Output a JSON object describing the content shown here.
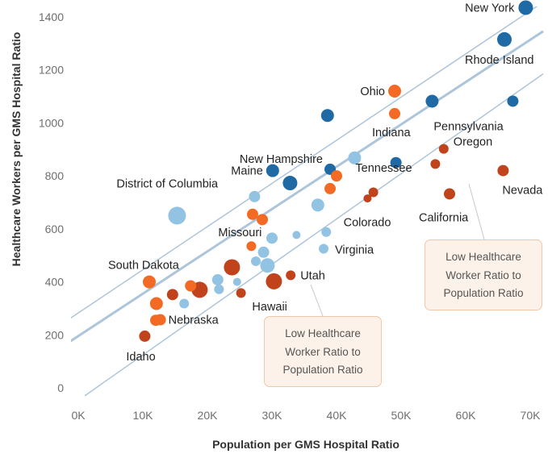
{
  "chart_data": {
    "type": "scatter",
    "xlabel": "Population per GMS Hospital Ratio",
    "ylabel": "Healthcare Workers per GMS Hospital Ratio",
    "xlim": [
      0,
      72000
    ],
    "ylim": [
      -20,
      1460
    ],
    "x_ticks": [
      {
        "value": 0,
        "label": "0K"
      },
      {
        "value": 10000,
        "label": "10K"
      },
      {
        "value": 20000,
        "label": "20K"
      },
      {
        "value": 30000,
        "label": "30K"
      },
      {
        "value": 40000,
        "label": "40K"
      },
      {
        "value": 50000,
        "label": "50K"
      },
      {
        "value": 60000,
        "label": "60K"
      },
      {
        "value": 70000,
        "label": "70K"
      }
    ],
    "y_ticks": [
      {
        "value": 0,
        "label": "0"
      },
      {
        "value": 200,
        "label": "200"
      },
      {
        "value": 400,
        "label": "400"
      },
      {
        "value": 600,
        "label": "600"
      },
      {
        "value": 800,
        "label": "800"
      },
      {
        "value": 1000,
        "label": "1000"
      },
      {
        "value": 1200,
        "label": "1200"
      },
      {
        "value": 1400,
        "label": "1400"
      }
    ],
    "grid": false,
    "colors": {
      "dark_blue": "#1f6aa5",
      "light_blue": "#92c3e3",
      "orange": "#f36a24",
      "dark_orange": "#c0431c",
      "trend": "#adc5da"
    },
    "trend_lines": [
      {
        "name": "trend",
        "x": [
          -10000,
          72000
        ],
        "y": [
          35.8,
          1345.8
        ],
        "width": 3
      },
      {
        "name": "upper",
        "x": [
          -10000,
          72000
        ],
        "y": [
          119.8,
          1455.8
        ],
        "width": 1.5
      },
      {
        "name": "lower",
        "x": [
          1000,
          72000
        ],
        "y": [
          -30,
          1185
        ],
        "width": 1.5
      }
    ],
    "points": [
      {
        "x": 69300,
        "y": 1435,
        "size": 9,
        "color": "dark_blue",
        "label": "New York"
      },
      {
        "x": 66000,
        "y": 1315,
        "size": 9,
        "color": "dark_blue",
        "label": "Rhode Island"
      },
      {
        "x": 67300,
        "y": 1082,
        "size": 7,
        "color": "dark_blue"
      },
      {
        "x": 54800,
        "y": 1082,
        "size": 8,
        "color": "dark_blue",
        "label": "Pennsylvania"
      },
      {
        "x": 38600,
        "y": 1028,
        "size": 8,
        "color": "dark_blue"
      },
      {
        "x": 49000,
        "y": 1120,
        "size": 8,
        "color": "orange",
        "label": "Ohio"
      },
      {
        "x": 49000,
        "y": 1035,
        "size": 7,
        "color": "orange",
        "label": "Indiana"
      },
      {
        "x": 42800,
        "y": 868,
        "size": 8,
        "color": "light_blue",
        "label": "Tennessee"
      },
      {
        "x": 39000,
        "y": 825,
        "size": 7,
        "color": "dark_blue",
        "label": "New Hampshire"
      },
      {
        "x": 49200,
        "y": 850,
        "size": 7,
        "color": "dark_blue"
      },
      {
        "x": 30100,
        "y": 820,
        "size": 8,
        "color": "dark_blue",
        "label": "Maine"
      },
      {
        "x": 32800,
        "y": 773,
        "size": 9,
        "color": "dark_blue"
      },
      {
        "x": 40000,
        "y": 800,
        "size": 7,
        "color": "orange"
      },
      {
        "x": 39000,
        "y": 752,
        "size": 7,
        "color": "orange"
      },
      {
        "x": 56600,
        "y": 902,
        "size": 6,
        "color": "dark_orange",
        "label": "Oregon"
      },
      {
        "x": 55300,
        "y": 845,
        "size": 6,
        "color": "dark_orange"
      },
      {
        "x": 65800,
        "y": 820,
        "size": 7,
        "color": "dark_orange",
        "label": "Nevada"
      },
      {
        "x": 57500,
        "y": 732,
        "size": 7,
        "color": "dark_orange",
        "label": "California"
      },
      {
        "x": 45700,
        "y": 738,
        "size": 6,
        "color": "dark_orange",
        "label": "Colorado"
      },
      {
        "x": 44800,
        "y": 715,
        "size": 5,
        "color": "dark_orange"
      },
      {
        "x": 27300,
        "y": 722,
        "size": 7,
        "color": "light_blue"
      },
      {
        "x": 15300,
        "y": 650,
        "size": 11,
        "color": "light_blue",
        "label": "District of Columbia"
      },
      {
        "x": 37100,
        "y": 690,
        "size": 8,
        "color": "light_blue"
      },
      {
        "x": 27000,
        "y": 655,
        "size": 7,
        "color": "orange"
      },
      {
        "x": 28500,
        "y": 635,
        "size": 7,
        "color": "orange"
      },
      {
        "x": 26800,
        "y": 535,
        "size": 6,
        "color": "orange",
        "label": "Missouri"
      },
      {
        "x": 30000,
        "y": 565,
        "size": 7,
        "color": "light_blue"
      },
      {
        "x": 33800,
        "y": 577,
        "size": 5,
        "color": "light_blue"
      },
      {
        "x": 38400,
        "y": 588,
        "size": 6,
        "color": "light_blue"
      },
      {
        "x": 28700,
        "y": 512,
        "size": 7,
        "color": "light_blue"
      },
      {
        "x": 27500,
        "y": 478,
        "size": 6,
        "color": "light_blue"
      },
      {
        "x": 29300,
        "y": 462,
        "size": 9,
        "color": "light_blue"
      },
      {
        "x": 38000,
        "y": 525,
        "size": 6,
        "color": "light_blue",
        "label": "Virginia"
      },
      {
        "x": 32900,
        "y": 425,
        "size": 6,
        "color": "dark_orange",
        "label": "Utah"
      },
      {
        "x": 30300,
        "y": 402,
        "size": 10,
        "color": "dark_orange",
        "label": "Hawaii"
      },
      {
        "x": 23800,
        "y": 455,
        "size": 10,
        "color": "dark_orange"
      },
      {
        "x": 21600,
        "y": 408,
        "size": 7,
        "color": "light_blue"
      },
      {
        "x": 24600,
        "y": 400,
        "size": 5,
        "color": "light_blue"
      },
      {
        "x": 21800,
        "y": 372,
        "size": 6,
        "color": "light_blue"
      },
      {
        "x": 18800,
        "y": 370,
        "size": 10,
        "color": "dark_orange"
      },
      {
        "x": 17400,
        "y": 385,
        "size": 7,
        "color": "orange"
      },
      {
        "x": 16400,
        "y": 318,
        "size": 6,
        "color": "light_blue"
      },
      {
        "x": 14600,
        "y": 352,
        "size": 7,
        "color": "dark_orange"
      },
      {
        "x": 25200,
        "y": 358,
        "size": 6,
        "color": "dark_orange"
      },
      {
        "x": 11000,
        "y": 400,
        "size": 8,
        "color": "orange",
        "label": "South Dakota"
      },
      {
        "x": 12100,
        "y": 318,
        "size": 8,
        "color": "orange"
      },
      {
        "x": 12000,
        "y": 255,
        "size": 7,
        "color": "orange"
      },
      {
        "x": 12700,
        "y": 257,
        "size": 7,
        "color": "orange",
        "label": "Nebraska"
      },
      {
        "x": 10300,
        "y": 195,
        "size": 7,
        "color": "dark_orange",
        "label": "Idaho"
      }
    ],
    "annotations": [
      {
        "id": "left",
        "lines": [
          "Low Healthcare",
          "Worker Ratio to",
          "Population Ratio"
        ],
        "target_x": 36000,
        "target_y": 390
      },
      {
        "id": "right",
        "lines": [
          "Low Healthcare",
          "Worker Ratio to",
          "Population Ratio"
        ],
        "target_x": 60500,
        "target_y": 770
      }
    ]
  }
}
